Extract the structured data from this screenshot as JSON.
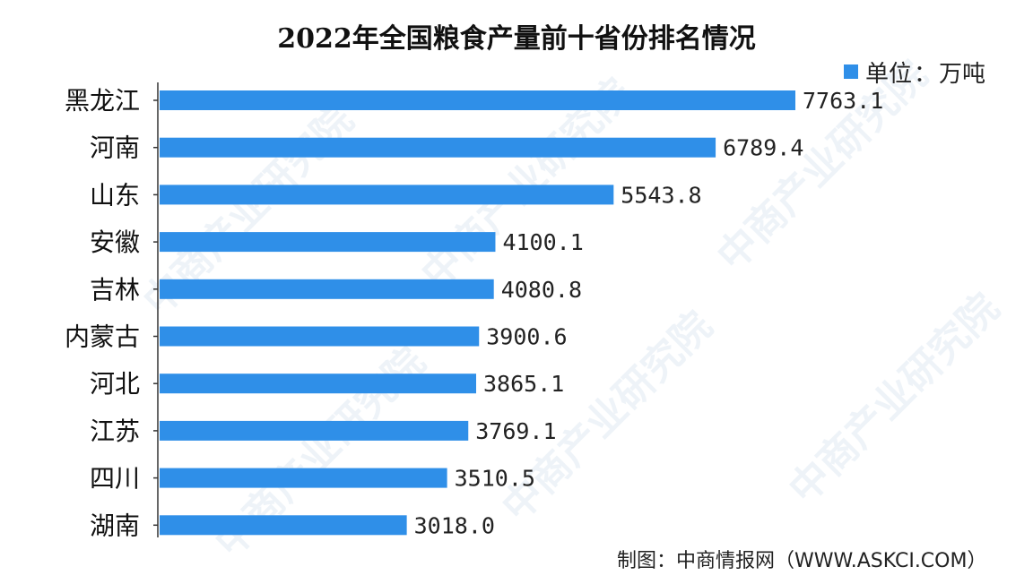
{
  "chart_data": {
    "type": "bar",
    "orientation": "horizontal",
    "title": "2022年全国粮食产量前十省份排名情况",
    "legend": {
      "series_name": "单位",
      "separator": "：",
      "unit": "万吨",
      "position": "top-right"
    },
    "categories": [
      "黑龙江",
      "河南",
      "山东",
      "安徽",
      "吉林",
      "内蒙古",
      "河北",
      "江苏",
      "四川",
      "湖南"
    ],
    "values": [
      7763.1,
      6789.4,
      5543.8,
      4100.1,
      4080.8,
      3900.6,
      3865.1,
      3769.1,
      3510.5,
      3018.0
    ],
    "data_labels": [
      "7763.1",
      "6789.4",
      "5543.8",
      "4100.1",
      "4080.8",
      "3900.6",
      "3865.1",
      "3769.1",
      "3510.5",
      "3018.0"
    ],
    "xlim": [
      0,
      7763.1
    ],
    "grid": false,
    "bar_color": "#2f8fe8"
  },
  "credit": "制图：中商情报网（WWW.ASKCI.COM）",
  "watermark_text": "中商产业研究院"
}
